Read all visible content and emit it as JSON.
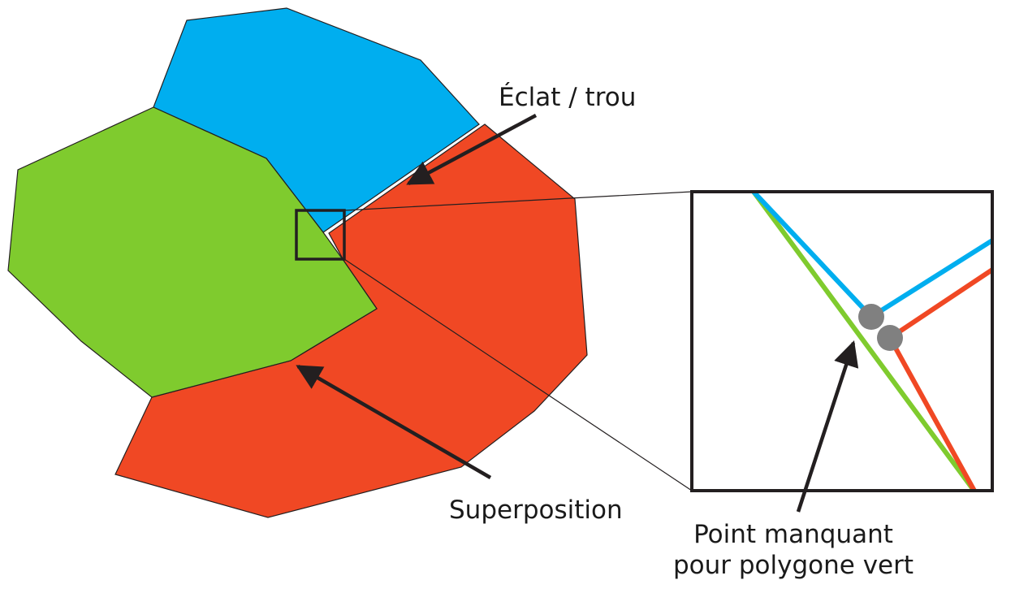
{
  "colors": {
    "blue": "#00aeef",
    "green": "#7fcb2e",
    "red": "#f04824",
    "outline": "#231f20",
    "vertex": "#808080",
    "background": "#ffffff"
  },
  "labels": {
    "sliver": "Éclat / trou",
    "overlap": "Superposition",
    "missing_line1": "Point manquant",
    "missing_line2": "pour polygone vert"
  }
}
